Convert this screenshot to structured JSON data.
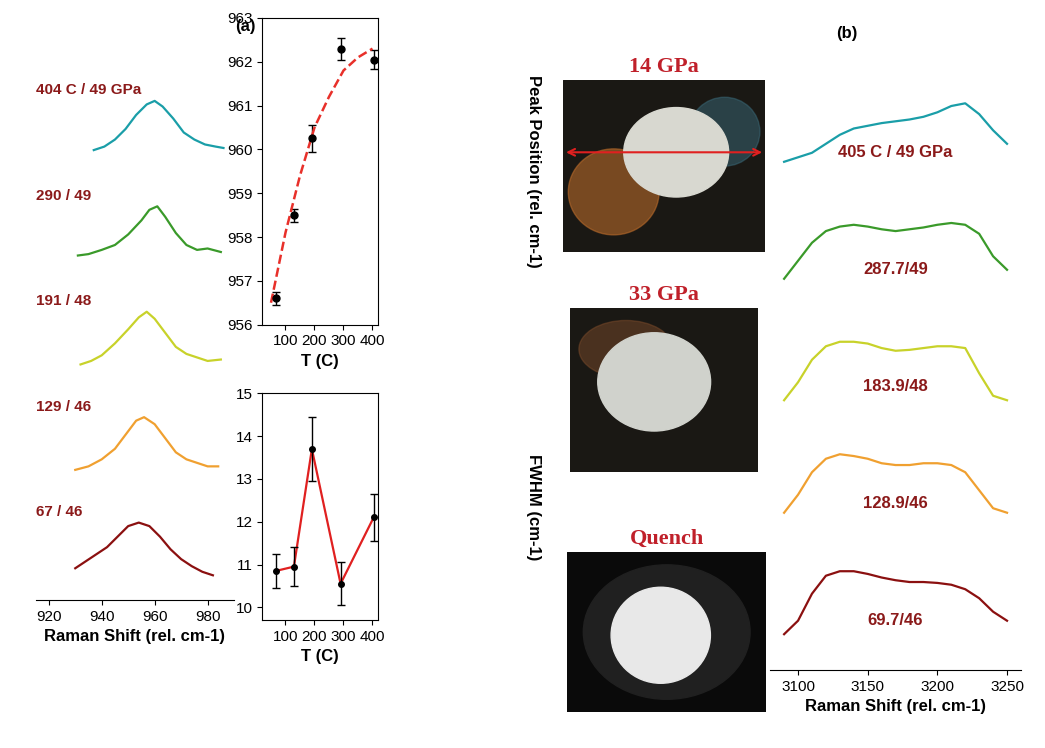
{
  "chart_data": [
    {
      "type": "line",
      "title": "(a)",
      "xlabel": "Raman Shift (rel. cm-1)",
      "xlim": [
        915,
        990
      ],
      "xticks": [
        920,
        940,
        960,
        980
      ],
      "tick_labels": "x",
      "series": [
        {
          "name": "404 C / 49 GPa",
          "color": "#1a9ea8",
          "x": [
            937,
            941,
            945,
            949,
            953,
            957,
            960,
            963,
            967,
            971,
            975,
            979,
            983,
            986
          ],
          "values": [
            0.3,
            0.35,
            0.45,
            0.6,
            0.8,
            0.95,
            1.0,
            0.92,
            0.75,
            0.55,
            0.45,
            0.38,
            0.35,
            0.33
          ]
        },
        {
          "name": "290 / 49",
          "color": "#3a9a2a",
          "x": [
            931,
            935,
            940,
            945,
            950,
            955,
            958,
            961,
            964,
            968,
            972,
            976,
            980,
            985
          ],
          "values": [
            0.3,
            0.32,
            0.38,
            0.45,
            0.6,
            0.8,
            0.95,
            1.0,
            0.85,
            0.62,
            0.45,
            0.38,
            0.4,
            0.35
          ]
        },
        {
          "name": "191 / 48",
          "color": "#c8d22a",
          "x": [
            932,
            936,
            940,
            945,
            950,
            954,
            957,
            960,
            964,
            968,
            972,
            976,
            980,
            985
          ],
          "values": [
            0.25,
            0.3,
            0.38,
            0.55,
            0.75,
            0.92,
            1.0,
            0.9,
            0.7,
            0.5,
            0.4,
            0.35,
            0.3,
            0.32
          ]
        },
        {
          "name": "129 / 46",
          "color": "#f0a030",
          "x": [
            930,
            935,
            940,
            945,
            950,
            953,
            956,
            960,
            964,
            968,
            972,
            976,
            980,
            984
          ],
          "values": [
            0.25,
            0.3,
            0.4,
            0.55,
            0.8,
            0.95,
            1.0,
            0.9,
            0.7,
            0.5,
            0.4,
            0.35,
            0.3,
            0.3
          ]
        },
        {
          "name": "67 / 46",
          "color": "#8b1010",
          "x": [
            930,
            934,
            938,
            942,
            946,
            950,
            954,
            958,
            962,
            966,
            970,
            974,
            978,
            982
          ],
          "values": [
            0.35,
            0.45,
            0.55,
            0.65,
            0.8,
            0.95,
            1.0,
            0.95,
            0.8,
            0.62,
            0.48,
            0.38,
            0.3,
            0.25
          ]
        }
      ]
    },
    {
      "type": "scatter",
      "xlabel": "T (C)",
      "ylabel": "Peak Position (rel. cm-1)",
      "xlim": [
        20,
        420
      ],
      "xticks": [
        100,
        200,
        300,
        400
      ],
      "ylim": [
        956,
        963
      ],
      "yticks": [
        956,
        957,
        958,
        959,
        960,
        961,
        962,
        963
      ],
      "series": [
        {
          "type": "scatter",
          "color": "#000000",
          "marker": "circle",
          "x": [
            67,
            129,
            191,
            290,
            404
          ],
          "values": [
            956.6,
            958.5,
            960.25,
            962.3,
            962.05
          ],
          "errors": [
            0.15,
            0.15,
            0.3,
            0.25,
            0.22
          ]
        },
        {
          "type": "line",
          "color": "#e8302a",
          "line_style": "dashed",
          "x": [
            50,
            100,
            150,
            200,
            250,
            300,
            350,
            400
          ],
          "values": [
            956.5,
            958.1,
            959.4,
            960.5,
            961.2,
            961.8,
            962.1,
            962.3
          ]
        }
      ]
    },
    {
      "type": "line",
      "xlabel": "T (C)",
      "ylabel": "FWHM (cm-1)",
      "xlim": [
        20,
        420
      ],
      "xticks": [
        100,
        200,
        300,
        400
      ],
      "ylim": [
        9.7,
        15
      ],
      "yticks": [
        10,
        11,
        12,
        13,
        14,
        15
      ],
      "series": [
        {
          "color": "#e02020",
          "marker": "circle",
          "x": [
            67,
            129,
            191,
            290,
            404
          ],
          "values": [
            10.85,
            10.95,
            13.7,
            10.55,
            12.1
          ],
          "errors": [
            0.4,
            0.45,
            0.75,
            0.5,
            0.55
          ]
        }
      ]
    },
    {
      "type": "line",
      "title": "(b)",
      "xlabel": "Raman Shift (rel. cm-1)",
      "xlim": [
        3080,
        3260
      ],
      "xticks": [
        3100,
        3150,
        3200,
        3250
      ],
      "tick_labels": "x",
      "series": [
        {
          "name": "405 C / 49 GPa",
          "color": "#1a9ea8",
          "x": [
            3090,
            3100,
            3110,
            3120,
            3130,
            3140,
            3150,
            3160,
            3170,
            3180,
            3190,
            3200,
            3210,
            3220,
            3230,
            3240,
            3250
          ],
          "values": [
            0.35,
            0.4,
            0.45,
            0.55,
            0.65,
            0.72,
            0.75,
            0.78,
            0.8,
            0.82,
            0.85,
            0.9,
            0.97,
            1.0,
            0.88,
            0.7,
            0.55
          ]
        },
        {
          "name": "287.7/49",
          "color": "#3a9a2a",
          "x": [
            3090,
            3100,
            3110,
            3120,
            3130,
            3140,
            3150,
            3160,
            3170,
            3180,
            3190,
            3200,
            3210,
            3220,
            3230,
            3240,
            3250
          ],
          "values": [
            0.35,
            0.55,
            0.75,
            0.88,
            0.93,
            0.95,
            0.93,
            0.9,
            0.88,
            0.9,
            0.92,
            0.95,
            0.97,
            0.95,
            0.85,
            0.6,
            0.45
          ]
        },
        {
          "name": "183.9/48",
          "color": "#c8d22a",
          "x": [
            3090,
            3100,
            3110,
            3120,
            3130,
            3140,
            3150,
            3160,
            3170,
            3180,
            3190,
            3200,
            3210,
            3220,
            3230,
            3240,
            3250
          ],
          "values": [
            0.3,
            0.5,
            0.75,
            0.9,
            0.95,
            0.95,
            0.93,
            0.88,
            0.85,
            0.86,
            0.88,
            0.9,
            0.9,
            0.88,
            0.6,
            0.35,
            0.3
          ]
        },
        {
          "name": "128.9/46",
          "color": "#f0a030",
          "x": [
            3090,
            3100,
            3110,
            3120,
            3130,
            3140,
            3150,
            3160,
            3170,
            3180,
            3190,
            3200,
            3210,
            3220,
            3230,
            3240,
            3250
          ],
          "values": [
            0.35,
            0.55,
            0.8,
            0.95,
            1.0,
            0.98,
            0.95,
            0.9,
            0.88,
            0.88,
            0.9,
            0.9,
            0.88,
            0.8,
            0.6,
            0.4,
            0.35
          ]
        },
        {
          "name": "69.7/46",
          "color": "#8b1010",
          "x": [
            3090,
            3100,
            3110,
            3120,
            3130,
            3140,
            3150,
            3160,
            3170,
            3180,
            3190,
            3200,
            3210,
            3220,
            3230,
            3240,
            3250
          ],
          "values": [
            0.3,
            0.45,
            0.75,
            0.95,
            1.0,
            1.0,
            0.97,
            0.93,
            0.9,
            0.88,
            0.88,
            0.87,
            0.85,
            0.8,
            0.7,
            0.55,
            0.45
          ]
        }
      ]
    }
  ],
  "photos": [
    {
      "label": "14 GPa"
    },
    {
      "label": "33 GPa"
    },
    {
      "label": "Quench"
    }
  ]
}
